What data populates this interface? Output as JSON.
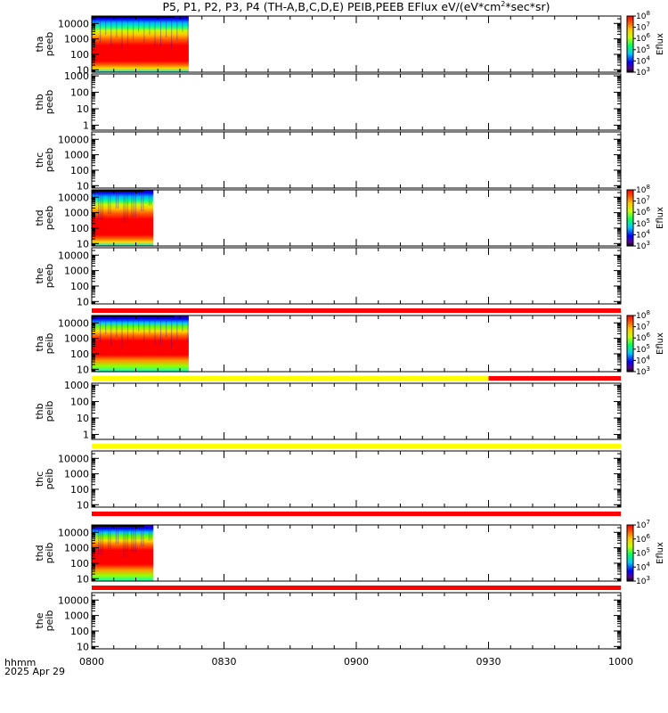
{
  "title": "P5, P1, P2, P3, P4 (TH-A,B,C,D,E) PEIB,PEEB EFlux eV/(eV*cm",
  "title_sup": "2",
  "title_tail": "*sec*sr)",
  "x_axis": {
    "ticks": [
      "0800",
      "0830",
      "0900",
      "0930",
      "1000"
    ],
    "corner_label": "hhmm",
    "date_label": "2025 Apr 29"
  },
  "colors": {
    "flag_red": "#ff0000",
    "flag_yellow": "#ffff00",
    "background": "#ffffff"
  },
  "chart_data": [
    {
      "type": "heatmap",
      "probe": "tha",
      "product": "peeb",
      "ylabel": [
        "tha",
        "peeb"
      ],
      "yscale": "log",
      "yticks": [
        "10",
        "100",
        "1000",
        "10000"
      ],
      "ylim": [
        7,
        30000
      ],
      "data_span": [
        "0800",
        "0822"
      ],
      "colorbar": {
        "label": "Eflux",
        "ticks": [
          "10",
          "10",
          "10",
          "10",
          "10",
          "10"
        ],
        "exponents": [
          "8",
          "7",
          "6",
          "5",
          "4",
          "3"
        ],
        "range_exponents": [
          3,
          8
        ]
      },
      "flags_below": []
    },
    {
      "type": "heatmap",
      "probe": "thb",
      "product": "peeb",
      "ylabel": [
        "thb",
        "peeb"
      ],
      "yscale": "log",
      "yticks": [
        "1",
        "10",
        "100",
        "1000"
      ],
      "ylim": [
        0.5,
        1300
      ],
      "data_span": null,
      "colorbar": null,
      "flags_below": []
    },
    {
      "type": "heatmap",
      "probe": "thc",
      "product": "peeb",
      "ylabel": [
        "thc",
        "peeb"
      ],
      "yscale": "log",
      "yticks": [
        "10",
        "100",
        "1000",
        "10000"
      ],
      "ylim": [
        7,
        30000
      ],
      "data_span": null,
      "colorbar": null,
      "flags_below": []
    },
    {
      "type": "heatmap",
      "probe": "thd",
      "product": "peeb",
      "ylabel": [
        "thd",
        "peeb"
      ],
      "yscale": "log",
      "yticks": [
        "10",
        "100",
        "1000",
        "10000"
      ],
      "ylim": [
        7,
        30000
      ],
      "data_span": [
        "0800",
        "0814"
      ],
      "colorbar": {
        "label": "Eflux",
        "ticks": [
          "10",
          "10",
          "10",
          "10",
          "10",
          "10"
        ],
        "exponents": [
          "8",
          "7",
          "6",
          "5",
          "4",
          "3"
        ],
        "range_exponents": [
          3,
          8
        ]
      },
      "flags_below": []
    },
    {
      "type": "heatmap",
      "probe": "the",
      "product": "peeb",
      "ylabel": [
        "the",
        "peeb"
      ],
      "yscale": "log",
      "yticks": [
        "10",
        "100",
        "1000",
        "10000"
      ],
      "ylim": [
        7,
        30000
      ],
      "data_span": null,
      "colorbar": null,
      "flags_below": [
        {
          "segments": [
            {
              "from": "0800",
              "to": "1000",
              "color": "red"
            }
          ]
        }
      ]
    },
    {
      "type": "heatmap",
      "probe": "tha",
      "product": "peib",
      "ylabel": [
        "tha",
        "peib"
      ],
      "yscale": "log",
      "yticks": [
        "10",
        "100",
        "1000",
        "10000"
      ],
      "ylim": [
        7,
        30000
      ],
      "data_span": [
        "0800",
        "0822"
      ],
      "colorbar": {
        "label": "Eflux",
        "ticks": [
          "10",
          "10",
          "10",
          "10",
          "10",
          "10"
        ],
        "exponents": [
          "8",
          "7",
          "6",
          "5",
          "4",
          "3"
        ],
        "range_exponents": [
          3,
          8
        ]
      },
      "flags_below": [
        {
          "segments": [
            {
              "from": "0800",
              "to": "0930",
              "color": "yellow"
            },
            {
              "from": "0930",
              "to": "1000",
              "color": "red"
            }
          ]
        }
      ]
    },
    {
      "type": "heatmap",
      "probe": "thb",
      "product": "peib",
      "ylabel": [
        "thb",
        "peib"
      ],
      "yscale": "log",
      "yticks": [
        "1",
        "10",
        "100",
        "1000"
      ],
      "ylim": [
        0.5,
        1300
      ],
      "data_span": null,
      "colorbar": null,
      "flags_below": [
        {
          "segments": [
            {
              "from": "0800",
              "to": "1000",
              "color": "yellow"
            }
          ]
        }
      ]
    },
    {
      "type": "heatmap",
      "probe": "thc",
      "product": "peib",
      "ylabel": [
        "thc",
        "peib"
      ],
      "yscale": "log",
      "yticks": [
        "10",
        "100",
        "1000",
        "10000"
      ],
      "ylim": [
        7,
        30000
      ],
      "data_span": null,
      "colorbar": null,
      "flags_below": [
        {
          "segments": [
            {
              "from": "0800",
              "to": "1000",
              "color": "red"
            }
          ]
        }
      ]
    },
    {
      "type": "heatmap",
      "probe": "thd",
      "product": "peib",
      "ylabel": [
        "thd",
        "peib"
      ],
      "yscale": "log",
      "yticks": [
        "10",
        "100",
        "1000",
        "10000"
      ],
      "ylim": [
        7,
        30000
      ],
      "data_span": [
        "0800",
        "0814"
      ],
      "colorbar": {
        "label": "Eflux",
        "ticks": [
          "10",
          "10",
          "10",
          "10",
          "10"
        ],
        "exponents": [
          "7",
          "6",
          "5",
          "4",
          "3"
        ],
        "range_exponents": [
          3,
          7
        ]
      },
      "flags_below": [
        {
          "segments": [
            {
              "from": "0800",
              "to": "1000",
              "color": "red"
            }
          ]
        }
      ]
    },
    {
      "type": "heatmap",
      "probe": "the",
      "product": "peib",
      "ylabel": [
        "the",
        "peib"
      ],
      "yscale": "log",
      "yticks": [
        "10",
        "100",
        "1000",
        "10000"
      ],
      "ylim": [
        7,
        30000
      ],
      "data_span": null,
      "colorbar": null,
      "flags_below": []
    }
  ]
}
